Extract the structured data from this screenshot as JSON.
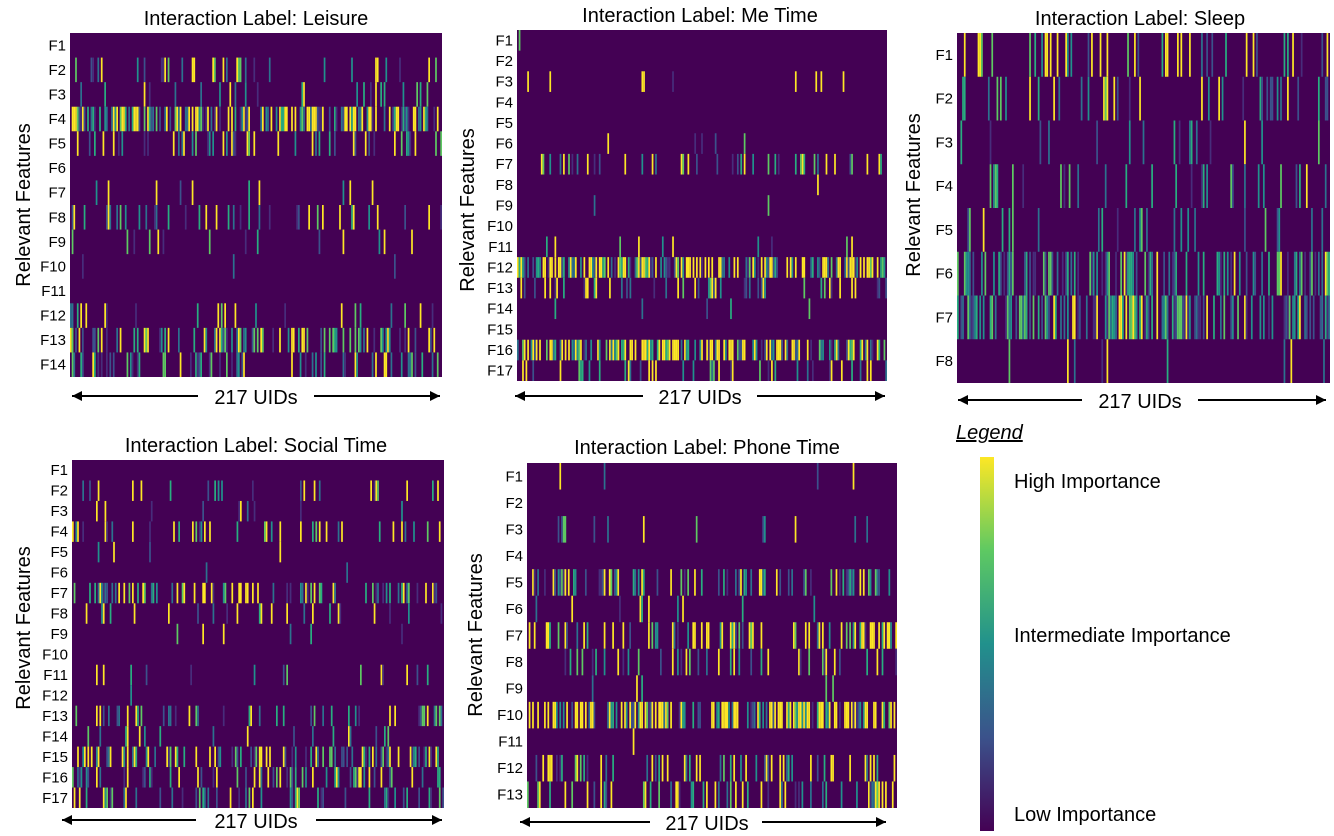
{
  "colors": {
    "low": "#440154",
    "mid": "#21918c",
    "high": "#fde725",
    "axis_arrow": "#000000"
  },
  "legend": {
    "title": "Legend",
    "high": "High Importance",
    "mid": "Intermediate Importance",
    "low": "Low Importance"
  },
  "chart_data": [
    {
      "type": "heatmap",
      "title": "Interaction Label: Leisure",
      "ylabel": "Relevant Features",
      "xlabel": "217 UIDs",
      "n_columns": 217,
      "rows": [
        "F1",
        "F2",
        "F3",
        "F4",
        "F5",
        "F6",
        "F7",
        "F8",
        "F9",
        "F10",
        "F11",
        "F12",
        "F13",
        "F14"
      ],
      "row_density": [
        0.0,
        0.12,
        0.08,
        0.55,
        0.22,
        0.0,
        0.06,
        0.18,
        0.06,
        0.02,
        0.0,
        0.1,
        0.35,
        0.28
      ],
      "row_high_share": [
        0.0,
        0.35,
        0.35,
        0.35,
        0.3,
        0.0,
        0.4,
        0.3,
        0.4,
        0.0,
        0.0,
        0.35,
        0.35,
        0.2
      ],
      "value_range": [
        0,
        1
      ]
    },
    {
      "type": "heatmap",
      "title": "Interaction Label: Me Time",
      "ylabel": "Relevant Features",
      "xlabel": "217 UIDs",
      "n_columns": 217,
      "rows": [
        "F1",
        "F2",
        "F3",
        "F4",
        "F5",
        "F6",
        "F7",
        "F8",
        "F9",
        "F10",
        "F11",
        "F12",
        "F13",
        "F14",
        "F15",
        "F16",
        "F17"
      ],
      "row_density": [
        0.01,
        0.0,
        0.02,
        0.0,
        0.0,
        0.02,
        0.18,
        0.02,
        0.01,
        0.0,
        0.04,
        0.6,
        0.18,
        0.02,
        0.0,
        0.6,
        0.18
      ],
      "row_high_share": [
        0.0,
        0.0,
        0.8,
        0.0,
        0.0,
        0.5,
        0.3,
        0.8,
        0.0,
        0.0,
        0.3,
        0.45,
        0.3,
        0.0,
        0.0,
        0.5,
        0.3
      ],
      "value_range": [
        0,
        1
      ]
    },
    {
      "type": "heatmap",
      "title": "Interaction Label: Sleep",
      "ylabel": "Relevant Features",
      "xlabel": "217 UIDs",
      "n_columns": 217,
      "rows": [
        "F1",
        "F2",
        "F3",
        "F4",
        "F5",
        "F6",
        "F7",
        "F8"
      ],
      "row_density": [
        0.18,
        0.16,
        0.12,
        0.12,
        0.12,
        0.4,
        0.55,
        0.06
      ],
      "row_high_share": [
        0.5,
        0.3,
        0.15,
        0.05,
        0.05,
        0.05,
        0.08,
        0.3
      ],
      "value_range": [
        0,
        1
      ]
    },
    {
      "type": "heatmap",
      "title": "Interaction Label: Social Time",
      "ylabel": "Relevant Features",
      "xlabel": "217 UIDs",
      "n_columns": 217,
      "rows": [
        "F1",
        "F2",
        "F3",
        "F4",
        "F5",
        "F6",
        "F7",
        "F8",
        "F9",
        "F10",
        "F11",
        "F12",
        "F13",
        "F14",
        "F15",
        "F16",
        "F17"
      ],
      "row_density": [
        0.0,
        0.1,
        0.05,
        0.22,
        0.03,
        0.02,
        0.3,
        0.15,
        0.03,
        0.0,
        0.04,
        0.01,
        0.18,
        0.1,
        0.4,
        0.25,
        0.2
      ],
      "row_high_share": [
        0.0,
        0.4,
        0.3,
        0.4,
        0.2,
        0.2,
        0.35,
        0.35,
        0.2,
        0.0,
        0.4,
        0.3,
        0.25,
        0.25,
        0.35,
        0.3,
        0.25
      ],
      "value_range": [
        0,
        1
      ]
    },
    {
      "type": "heatmap",
      "title": "Interaction Label: Phone Time",
      "ylabel": "Relevant Features",
      "xlabel": "217 UIDs",
      "n_columns": 217,
      "rows": [
        "F1",
        "F2",
        "F3",
        "F4",
        "F5",
        "F6",
        "F7",
        "F8",
        "F9",
        "F10",
        "F11",
        "F12",
        "F13"
      ],
      "row_density": [
        0.03,
        0.0,
        0.04,
        0.0,
        0.35,
        0.05,
        0.3,
        0.2,
        0.02,
        0.65,
        0.02,
        0.28,
        0.25
      ],
      "row_high_share": [
        0.5,
        0.0,
        0.2,
        0.0,
        0.3,
        0.2,
        0.5,
        0.3,
        0.2,
        0.55,
        0.8,
        0.5,
        0.25
      ],
      "value_range": [
        0,
        1
      ]
    }
  ]
}
